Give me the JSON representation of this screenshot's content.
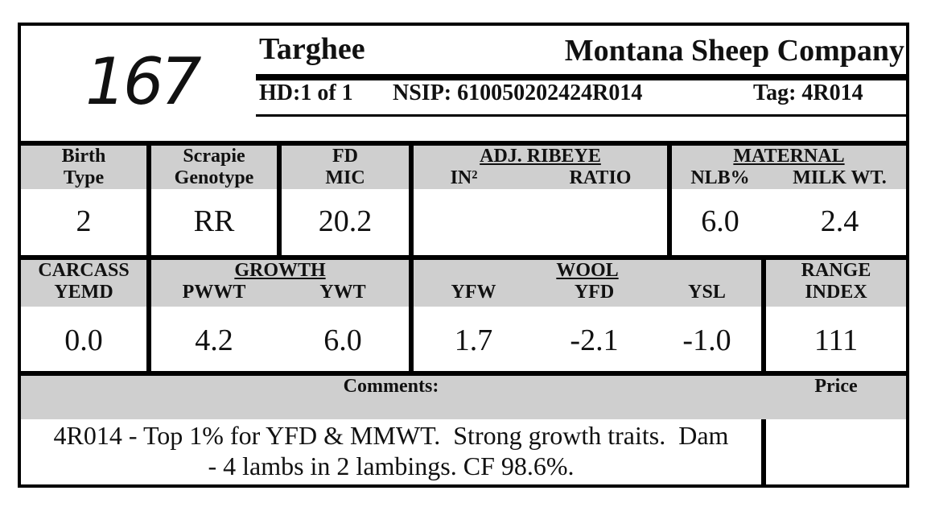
{
  "header": {
    "lot_number": "167",
    "breed": "Targhee",
    "company": "Montana Sheep Company",
    "hd": "HD:1 of 1",
    "nsip": "NSIP: 610050202424R014",
    "tag": "Tag: 4R014"
  },
  "row1": {
    "birth_type": {
      "label_1": "Birth",
      "label_2": "Type",
      "value": "2"
    },
    "scrapie": {
      "label_1": "Scrapie",
      "label_2": "Genotype",
      "value": "RR"
    },
    "fd_mic": {
      "label_1": "FD",
      "label_2": "MIC",
      "value": "20.2"
    },
    "ribeye": {
      "group": "ADJ. RIBEYE",
      "col_in2": "IN²",
      "col_ratio": "RATIO",
      "val_in2": "",
      "val_ratio": ""
    },
    "maternal": {
      "group": "MATERNAL",
      "col_nlb": "NLB%",
      "col_milk": "MILK WT.",
      "val_nlb": "6.0",
      "val_milk": "2.4"
    }
  },
  "row2": {
    "carcass": {
      "label_1": "CARCASS",
      "label_2": "YEMD",
      "value": "0.0"
    },
    "growth": {
      "group": "GROWTH",
      "col_pwwt": "PWWT",
      "col_ywt": "YWT",
      "val_pwwt": "4.2",
      "val_ywt": "6.0"
    },
    "wool": {
      "group": "WOOL",
      "col_yfw": "YFW",
      "col_yfd": "YFD",
      "col_ysl": "YSL",
      "val_yfw": "1.7",
      "val_yfd": "-2.1",
      "val_ysl": "-1.0"
    },
    "range": {
      "label_1": "RANGE",
      "label_2": "INDEX",
      "value": "111"
    }
  },
  "footer": {
    "comments_label": "Comments:",
    "comment_line_1": "4R014 - Top 1% for YFD & MMWT.  Strong growth traits.  Dam",
    "comment_line_2": "- 4 lambs in 2 lambings. CF 98.6%.",
    "price_label": "Price",
    "price_value": ""
  }
}
